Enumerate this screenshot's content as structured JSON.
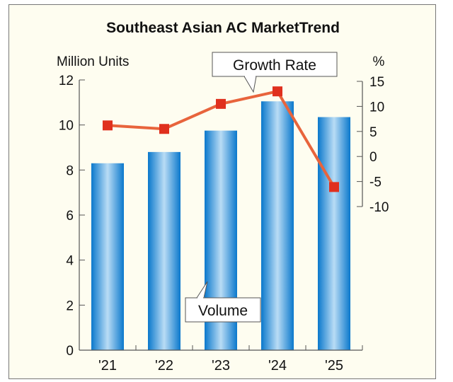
{
  "chart_data": {
    "type": "bar+line",
    "title": "Southeast Asian AC MarketTrend",
    "categories": [
      "'21",
      "'22",
      "'23",
      "'24",
      "'25"
    ],
    "series": [
      {
        "name": "Volume",
        "type": "bar",
        "axis": "left",
        "values": [
          8.3,
          8.8,
          9.75,
          11.05,
          10.35
        ],
        "color": "#1a86d4"
      },
      {
        "name": "Growth Rate",
        "type": "line",
        "axis": "right",
        "values": [
          6.2,
          5.5,
          10.5,
          13.0,
          -6.1
        ],
        "color": "#e8643c",
        "marker_color": "#e0301e"
      }
    ],
    "ylabel": "Million Units",
    "ylim": [
      0,
      12
    ],
    "yticks": [
      0,
      2,
      4,
      6,
      8,
      10,
      12
    ],
    "y2label": "%",
    "y2lim": [
      -10,
      15
    ],
    "y2ticks": [
      -10,
      -5,
      0,
      5,
      10,
      15
    ],
    "grid": false,
    "legend": "callout labels"
  }
}
